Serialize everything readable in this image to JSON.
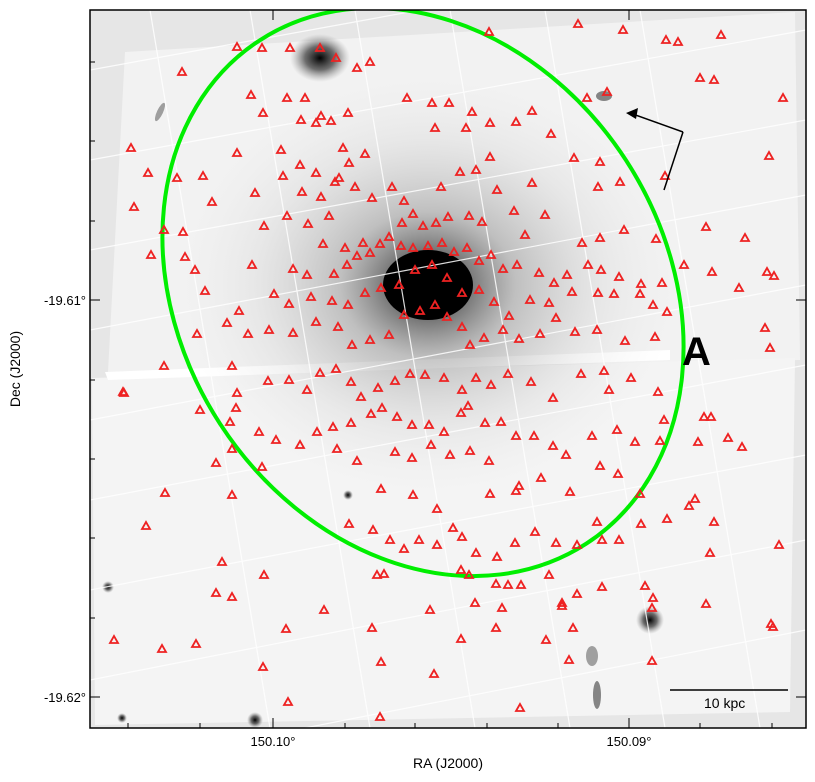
{
  "figure": {
    "panel_label": "A",
    "x_axis_label": "RA (J2000)",
    "y_axis_label": "Dec (J2000)",
    "x_tick_labels": [
      "150.10°",
      "150.09°"
    ],
    "y_tick_labels": [
      "-19.61°",
      "-19.62°"
    ],
    "scale_bar_label": "10 kpc"
  },
  "colors": {
    "ellipse": "#00ee00",
    "markers": "#ee2222",
    "background": "#e6e6e6",
    "image_sky": "#f3f3f3",
    "frame": "#000000"
  },
  "icons": [
    "compass-arrow-icon",
    "triangle-marker-icon"
  ]
}
